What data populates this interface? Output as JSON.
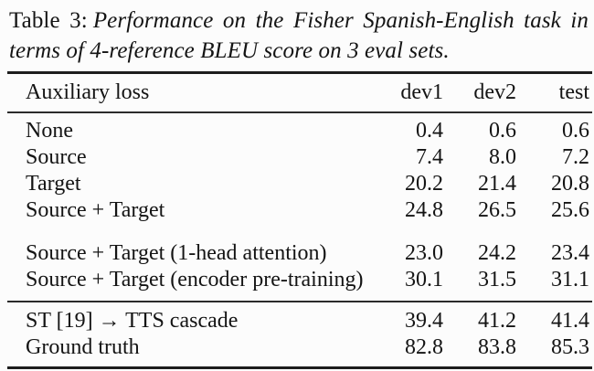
{
  "caption": {
    "label": "Table 3:",
    "text": "Performance on the Fisher Spanish-English task in terms of 4-reference BLEU score on 3 eval sets."
  },
  "table": {
    "header": {
      "col0": "Auxiliary loss",
      "col1": "dev1",
      "col2": "dev2",
      "col3": "test"
    },
    "groups": [
      {
        "rows": [
          {
            "label": "None",
            "values": [
              "0.4",
              "0.6",
              "0.6"
            ]
          },
          {
            "label": "Source",
            "values": [
              "7.4",
              "8.0",
              "7.2"
            ]
          },
          {
            "label": "Target",
            "values": [
              "20.2",
              "21.4",
              "20.8"
            ]
          },
          {
            "label": "Source + Target",
            "values": [
              "24.8",
              "26.5",
              "25.6"
            ]
          }
        ]
      },
      {
        "rows": [
          {
            "label": "Source + Target (1-head attention)",
            "values": [
              "23.0",
              "24.2",
              "23.4"
            ]
          },
          {
            "label": "Source + Target (encoder pre-training)",
            "values": [
              "30.1",
              "31.5",
              "31.1"
            ]
          }
        ]
      },
      {
        "rows": [
          {
            "label": "ST [19] → TTS cascade",
            "values": [
              "39.4",
              "41.2",
              "41.4"
            ]
          },
          {
            "label": "Ground truth",
            "values": [
              "82.8",
              "83.8",
              "85.3"
            ]
          }
        ]
      }
    ],
    "colors": {
      "background": "#fcfcfc",
      "text": "#141414",
      "rule": "#1d1d1d"
    }
  }
}
